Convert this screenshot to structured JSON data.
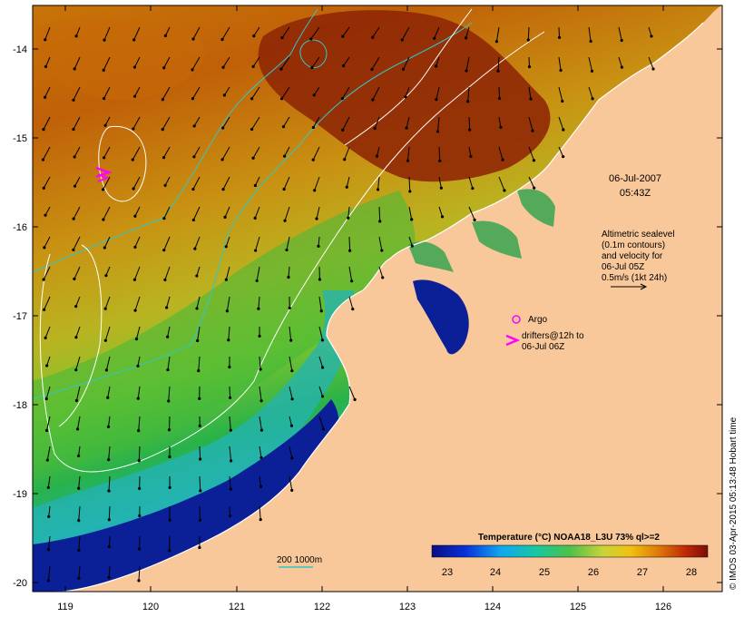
{
  "map": {
    "x_ticks": [
      "119",
      "120",
      "121",
      "122",
      "123",
      "124",
      "125",
      "126"
    ],
    "y_ticks": [
      "-14",
      "-15",
      "-16",
      "-17",
      "-18",
      "-19",
      "-20"
    ],
    "date": "06-Jul-2007",
    "time": "05:43Z",
    "altimetry_lines": [
      "Altimetric sealevel",
      "(0.1m contours)",
      "and velocity for",
      "06-Jul 05Z",
      "0.5m/s (1kt 24h)"
    ],
    "argo_label": "Argo",
    "drifter_lines": [
      "drifters@12h to",
      "06-Jul 06Z"
    ],
    "depth_legend": "200  1000m",
    "colorbar": {
      "title": "Temperature (°C) NOAA18_L3U 73% ql>=2",
      "ticks": [
        "23",
        "24",
        "25",
        "26",
        "27",
        "28"
      ]
    },
    "credit": "© IMOS 03-Apr-2015 05:13:48 Hobart time",
    "colors": {
      "land": "#f9c89a",
      "cold": "#0b1a8c",
      "warm": "#8a1a05",
      "drifter": "#ff00ff",
      "isobath": "#33c6c6",
      "contour": "#ffffff"
    }
  }
}
